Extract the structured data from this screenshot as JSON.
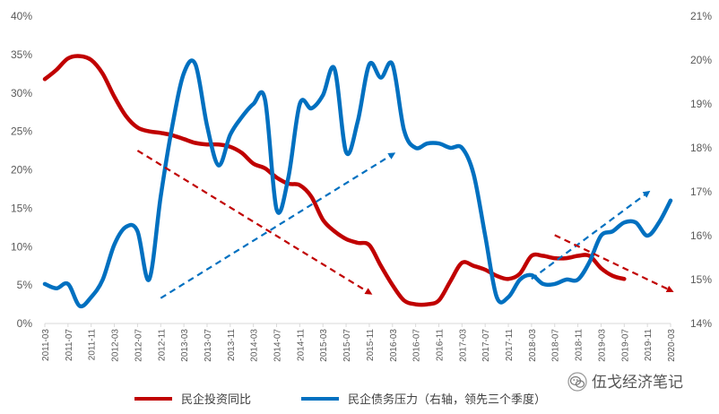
{
  "chart_data": {
    "type": "line",
    "x_categories": [
      "2011-03",
      "2011-07",
      "2011-11",
      "2012-03",
      "2012-07",
      "2012-11",
      "2013-03",
      "2013-07",
      "2013-11",
      "2014-03",
      "2014-07",
      "2014-11",
      "2015-03",
      "2015-07",
      "2015-11",
      "2016-03",
      "2016-07",
      "2016-11",
      "2017-03",
      "2017-07",
      "2017-11",
      "2018-03",
      "2018-07",
      "2018-11",
      "2019-03",
      "2019-07",
      "2019-11",
      "2020-03"
    ],
    "left_axis": {
      "min": 0,
      "max": 40,
      "step": 5,
      "tick_labels": [
        "0%",
        "5%",
        "10%",
        "15%",
        "20%",
        "25%",
        "30%",
        "35%",
        "40%"
      ]
    },
    "right_axis": {
      "min": 14,
      "max": 21,
      "step": 1,
      "tick_labels": [
        "14%",
        "15%",
        "16%",
        "17%",
        "18%",
        "19%",
        "20%",
        "21%"
      ]
    },
    "series": [
      {
        "name": "民企投资同比",
        "color": "#C00000",
        "axis": "left",
        "x": [
          "2011-03",
          "2011-05",
          "2011-07",
          "2011-09",
          "2011-11",
          "2012-01",
          "2012-03",
          "2012-05",
          "2012-07",
          "2012-09",
          "2012-11",
          "2013-01",
          "2013-03",
          "2013-05",
          "2013-07",
          "2013-09",
          "2013-11",
          "2014-01",
          "2014-03",
          "2014-05",
          "2014-07",
          "2014-09",
          "2014-11",
          "2015-01",
          "2015-03",
          "2015-05",
          "2015-07",
          "2015-09",
          "2015-11",
          "2016-01",
          "2016-03",
          "2016-05",
          "2016-07",
          "2016-09",
          "2016-11",
          "2017-01",
          "2017-03",
          "2017-05",
          "2017-07",
          "2017-09",
          "2017-11",
          "2018-01",
          "2018-03",
          "2018-05",
          "2018-07",
          "2018-09",
          "2018-11",
          "2019-01",
          "2019-03",
          "2019-05",
          "2019-07"
        ],
        "values": [
          31.8,
          33,
          34.5,
          34.8,
          34.3,
          32.5,
          29.5,
          27,
          25.5,
          25,
          24.8,
          24.5,
          24,
          23.5,
          23.3,
          23.3,
          23,
          22.2,
          20.8,
          20.2,
          19,
          18.2,
          18,
          16.5,
          13.5,
          12,
          11,
          10.5,
          10.2,
          7.5,
          5,
          3,
          2.5,
          2.5,
          3,
          5.5,
          7.9,
          7.5,
          7,
          6.2,
          5.8,
          6.5,
          8.8,
          8.8,
          8.5,
          8.5,
          8.8,
          8.8,
          7.2,
          6.2,
          5.8
        ]
      },
      {
        "name": "民企债务压力（右轴，领先三个季度）",
        "color": "#0070C0",
        "axis": "right",
        "x": [
          "2011-03",
          "2011-05",
          "2011-07",
          "2011-09",
          "2011-11",
          "2012-01",
          "2012-03",
          "2012-05",
          "2012-07",
          "2012-09",
          "2012-11",
          "2013-01",
          "2013-03",
          "2013-05",
          "2013-07",
          "2013-09",
          "2013-11",
          "2014-01",
          "2014-03",
          "2014-05",
          "2014-07",
          "2014-09",
          "2014-11",
          "2015-01",
          "2015-03",
          "2015-05",
          "2015-07",
          "2015-09",
          "2015-11",
          "2016-01",
          "2016-03",
          "2016-05",
          "2016-07",
          "2016-09",
          "2016-11",
          "2017-01",
          "2017-03",
          "2017-05",
          "2017-07",
          "2017-09",
          "2017-11",
          "2018-01",
          "2018-03",
          "2018-05",
          "2018-07",
          "2018-09",
          "2018-11",
          "2019-01",
          "2019-03",
          "2019-05",
          "2019-07",
          "2019-09",
          "2019-11",
          "2020-01",
          "2020-03"
        ],
        "values": [
          14.9,
          14.8,
          14.9,
          14.4,
          14.6,
          15,
          15.8,
          16.2,
          16.1,
          15,
          16.9,
          18.5,
          19.7,
          19.9,
          18.5,
          17.6,
          18.3,
          18.7,
          19,
          19.1,
          16.6,
          17.3,
          19,
          18.9,
          19.2,
          19.8,
          17.9,
          18.6,
          19.9,
          19.6,
          19.9,
          18.4,
          18,
          18.1,
          18.1,
          18,
          18,
          17.4,
          16,
          14.6,
          14.6,
          15,
          15.1,
          14.9,
          14.9,
          15,
          15,
          15.4,
          16,
          16.1,
          16.3,
          16.3,
          16,
          16.3,
          16.8
        ]
      }
    ],
    "trend_arrows": [
      {
        "color": "#C00000",
        "from": [
          "2012-07",
          22.5
        ],
        "to": [
          "2015-11",
          4
        ]
      },
      {
        "color": "#0070C0",
        "from": [
          "2012-11",
          3.3
        ],
        "to": [
          "2016-03",
          22
        ]
      },
      {
        "color": "#0070C0",
        "from": [
          "2018-03",
          5.8
        ],
        "to": [
          "2019-11",
          17
        ]
      },
      {
        "color": "#C00000",
        "from": [
          "2018-07",
          11.5
        ],
        "to": [
          "2020-03",
          4.3
        ]
      }
    ],
    "legend": {
      "position": "bottom",
      "items": [
        "民企投资同比",
        "民企债务压力（右轴，领先三个季度）"
      ]
    },
    "grid": false
  },
  "watermark": {
    "text": "伍戈经济笔记",
    "icon": "wechat-icon"
  }
}
